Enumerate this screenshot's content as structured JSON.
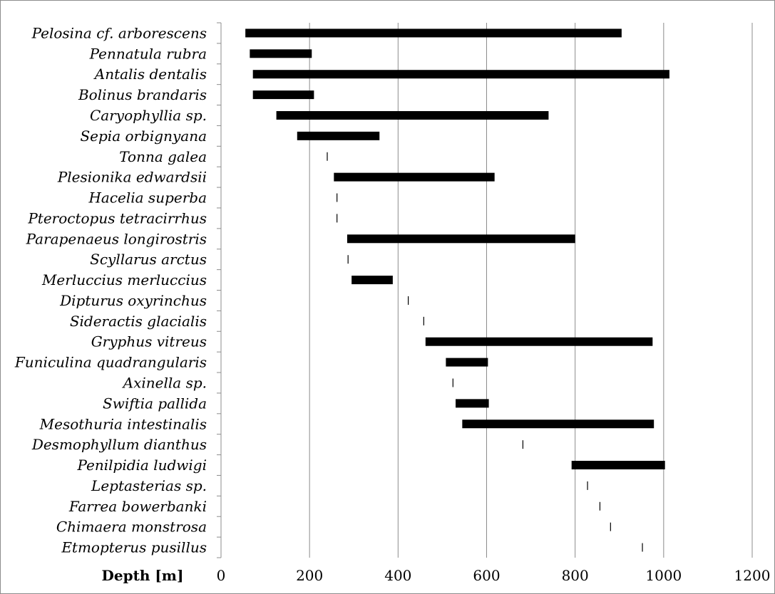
{
  "chart_data": {
    "type": "bar",
    "orientation": "horizontal-range",
    "title": "",
    "xlabel": "Depth [m]",
    "ylabel": "",
    "xlim": [
      0,
      1200
    ],
    "x_ticks": [
      "0",
      "200",
      "400",
      "600",
      "800",
      "1000",
      "1200"
    ],
    "grid": "vertical",
    "legend": "none",
    "bar_color": "#000000",
    "grid_color": "#8c8c8c",
    "series": [
      {
        "species": "Pelosina cf. arborescens",
        "min": 55,
        "max": 905
      },
      {
        "species": "Pennatula rubra",
        "min": 65,
        "max": 205
      },
      {
        "species": "Antalis dentalis",
        "min": 72,
        "max": 1013
      },
      {
        "species": "Bolinus brandaris",
        "min": 72,
        "max": 210
      },
      {
        "species": "Caryophyllia sp.",
        "min": 125,
        "max": 740
      },
      {
        "species": "Sepia orbignyana",
        "min": 172,
        "max": 358
      },
      {
        "species": "Tonna galea",
        "min": 240,
        "max": 240
      },
      {
        "species": "Plesionika edwardsii",
        "min": 255,
        "max": 618
      },
      {
        "species": "Hacelia superba",
        "min": 262,
        "max": 262
      },
      {
        "species": "Pteroctopus tetracirrhus",
        "min": 262,
        "max": 262
      },
      {
        "species": "Parapenaeus longirostris",
        "min": 285,
        "max": 800
      },
      {
        "species": "Scyllarus arctus",
        "min": 287,
        "max": 287
      },
      {
        "species": "Merluccius merluccius",
        "min": 295,
        "max": 388
      },
      {
        "species": "Dipturus oxyrinchus",
        "min": 423,
        "max": 423
      },
      {
        "species": "Sideractis glacialis",
        "min": 458,
        "max": 458
      },
      {
        "species": "Gryphus vitreus",
        "min": 462,
        "max": 975
      },
      {
        "species": "Funiculina quadrangularis",
        "min": 508,
        "max": 603
      },
      {
        "species": "Axinella sp.",
        "min": 524,
        "max": 524
      },
      {
        "species": "Swiftia pallida",
        "min": 530,
        "max": 605
      },
      {
        "species": "Mesothuria intestinalis",
        "min": 545,
        "max": 978
      },
      {
        "species": "Desmophyllum dianthus",
        "min": 682,
        "max": 682
      },
      {
        "species": "Penilpidia ludwigi",
        "min": 792,
        "max": 1003
      },
      {
        "species": "Leptasterias sp.",
        "min": 828,
        "max": 828
      },
      {
        "species": "Farrea bowerbanki",
        "min": 856,
        "max": 856
      },
      {
        "species": "Chimaera monstrosa",
        "min": 880,
        "max": 880
      },
      {
        "species": "Etmopterus pusillus",
        "min": 952,
        "max": 952
      }
    ]
  }
}
